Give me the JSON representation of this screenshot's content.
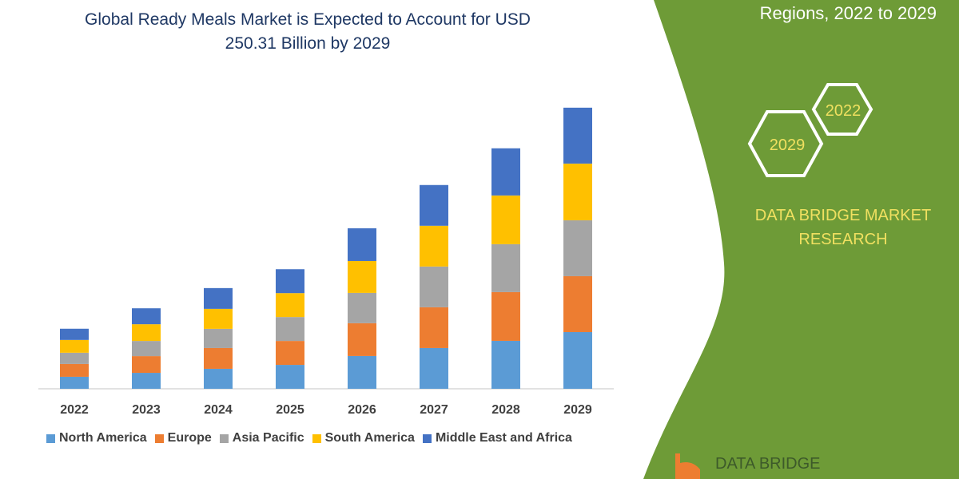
{
  "title_lines": [
    "Global Ready Meals Market is Expected to Account for USD",
    "250.31 Billion by 2029"
  ],
  "side_panel": {
    "subtitle": "Regions, 2022 to 2029",
    "hex_labels": [
      "2022",
      "2029"
    ],
    "brand_lines": [
      "DATA BRIDGE MARKET",
      "RESEARCH"
    ],
    "footer_logo_text": "DATA BRIDGE",
    "green": "#6e9b37",
    "accent_text": "#f0e060"
  },
  "chart_data": {
    "type": "bar",
    "stacked": true,
    "categories": [
      "2022",
      "2023",
      "2024",
      "2025",
      "2026",
      "2027",
      "2028",
      "2029"
    ],
    "ylabel": "",
    "unit": "USD Billion (estimated)",
    "ylim": [
      0,
      250.31
    ],
    "grid": false,
    "legend_placement": "bottom",
    "series": [
      {
        "name": "North America",
        "color": "#5b9bd5",
        "values": [
          10.7,
          14.2,
          17.8,
          21.3,
          29.2,
          36.3,
          42.7,
          50.5
        ]
      },
      {
        "name": "Europe",
        "color": "#ed7d31",
        "values": [
          11.4,
          14.9,
          18.5,
          21.3,
          29.2,
          36.3,
          43.4,
          49.8
        ]
      },
      {
        "name": "Asia Pacific",
        "color": "#a5a5a5",
        "values": [
          10.0,
          13.5,
          17.1,
          21.3,
          27.0,
          36.3,
          42.7,
          49.8
        ]
      },
      {
        "name": "South America",
        "color": "#ffc000",
        "values": [
          11.4,
          14.9,
          17.8,
          21.3,
          28.4,
          36.3,
          43.4,
          50.5
        ]
      },
      {
        "name": "Middle East and Africa",
        "color": "#4472c4",
        "values": [
          10.0,
          14.2,
          18.5,
          21.3,
          29.2,
          36.3,
          42.0,
          49.8
        ]
      }
    ]
  }
}
